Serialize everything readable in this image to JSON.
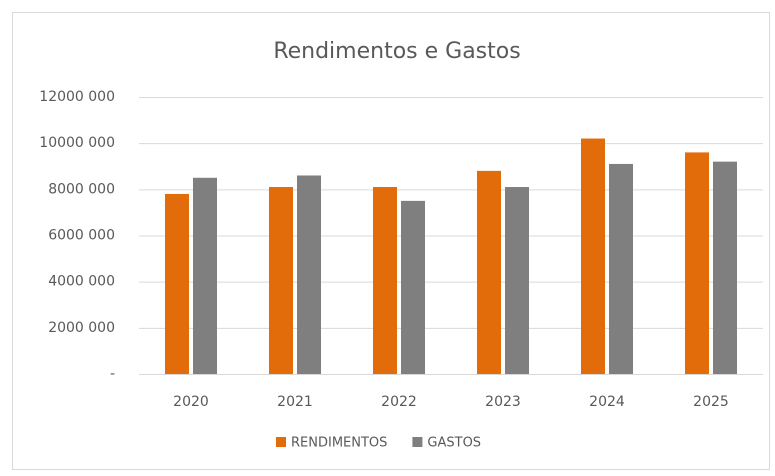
{
  "chart_data": {
    "type": "bar",
    "title": "Rendimentos e Gastos",
    "categories": [
      "2020",
      "2021",
      "2022",
      "2023",
      "2024",
      "2025"
    ],
    "series": [
      {
        "name": "RENDIMENTOS",
        "color": "#e36c0a",
        "values": [
          7800000,
          8100000,
          8100000,
          8800000,
          10200000,
          9600000
        ]
      },
      {
        "name": "GASTOS",
        "color": "#7f7f7f",
        "values": [
          8500000,
          8600000,
          7500000,
          8100000,
          9100000,
          9200000
        ]
      }
    ],
    "ylim": [
      0,
      12000000
    ],
    "yticks": [
      {
        "value": 0,
        "label": "-"
      },
      {
        "value": 2000000,
        "label": "2000 000"
      },
      {
        "value": 4000000,
        "label": "4000 000"
      },
      {
        "value": 6000000,
        "label": "6000 000"
      },
      {
        "value": 8000000,
        "label": "8000 000"
      },
      {
        "value": 10000000,
        "label": "10000 000"
      },
      {
        "value": 12000000,
        "label": "12000 000"
      }
    ],
    "grid": true,
    "legend": "bottom"
  }
}
